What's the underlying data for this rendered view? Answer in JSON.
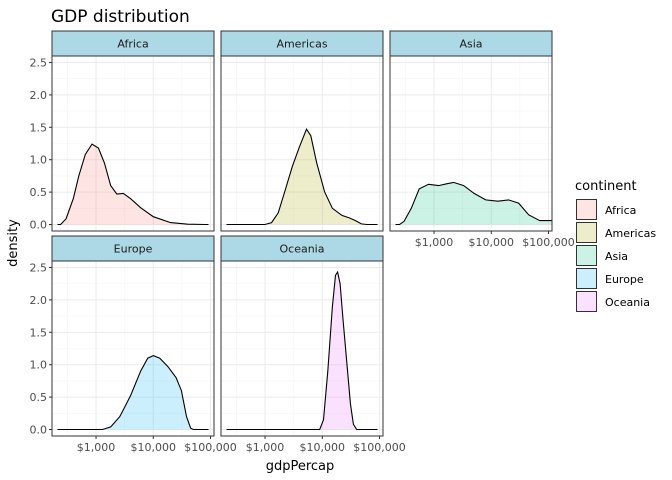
{
  "colors": {
    "strip_bg": "#add8e6",
    "grid_major": "#ebebeb",
    "grid_minor": "#f5f5f5",
    "panel_border": "#333333",
    "curve": "#000000",
    "Africa": "#f8766d",
    "Americas": "#a3a500",
    "Asia": "#00bf7d",
    "Europe": "#00b0f6",
    "Oceania": "#e76bf3"
  },
  "chart_data": {
    "type": "area",
    "subtype": "faceted density",
    "title": "GDP distribution",
    "xlabel": "gdpPercap",
    "ylabel": "density",
    "x_scale": "log10",
    "xlim": [
      170,
      115000
    ],
    "ylim": [
      -0.1,
      2.6
    ],
    "x_ticks": [
      1000,
      10000,
      100000
    ],
    "x_tick_labels": [
      "$1,000",
      "$10,000",
      "$100,000"
    ],
    "y_ticks": [
      0,
      0.5,
      1,
      1.5,
      2,
      2.5
    ],
    "y_tick_labels": [
      "0.0",
      "0.5",
      "1.0",
      "1.5",
      "2.0",
      "2.5"
    ],
    "grid": true,
    "fill_alpha": 0.2,
    "legend": {
      "title": "continent",
      "position": "right",
      "entries": [
        "Africa",
        "Americas",
        "Asia",
        "Europe",
        "Oceania"
      ]
    },
    "facets": [
      {
        "name": "Africa",
        "points": [
          [
            240,
            0
          ],
          [
            300,
            0.09
          ],
          [
            400,
            0.4
          ],
          [
            500,
            0.75
          ],
          [
            650,
            1.08
          ],
          [
            850,
            1.24
          ],
          [
            1100,
            1.18
          ],
          [
            1400,
            0.95
          ],
          [
            1800,
            0.6
          ],
          [
            2300,
            0.47
          ],
          [
            3000,
            0.48
          ],
          [
            4000,
            0.4
          ],
          [
            6000,
            0.26
          ],
          [
            10000,
            0.12
          ],
          [
            20000,
            0.03
          ],
          [
            40000,
            0.005
          ],
          [
            80000,
            0
          ]
        ]
      },
      {
        "name": "Americas",
        "points": [
          [
            1000,
            0
          ],
          [
            1300,
            0.03
          ],
          [
            1700,
            0.18
          ],
          [
            2200,
            0.5
          ],
          [
            3000,
            0.9
          ],
          [
            4000,
            1.2
          ],
          [
            5300,
            1.47
          ],
          [
            6300,
            1.37
          ],
          [
            8000,
            0.95
          ],
          [
            11000,
            0.5
          ],
          [
            15000,
            0.25
          ],
          [
            22000,
            0.14
          ],
          [
            30000,
            0.1
          ],
          [
            38000,
            0.06
          ],
          [
            48000,
            0.01
          ],
          [
            60000,
            0
          ]
        ]
      },
      {
        "name": "Asia",
        "points": [
          [
            250,
            0
          ],
          [
            300,
            0.05
          ],
          [
            400,
            0.25
          ],
          [
            550,
            0.55
          ],
          [
            800,
            0.62
          ],
          [
            1200,
            0.6
          ],
          [
            1700,
            0.63
          ],
          [
            2200,
            0.65
          ],
          [
            3300,
            0.6
          ],
          [
            5000,
            0.48
          ],
          [
            8000,
            0.38
          ],
          [
            13000,
            0.36
          ],
          [
            20000,
            0.38
          ],
          [
            30000,
            0.33
          ],
          [
            45000,
            0.15
          ],
          [
            70000,
            0.06
          ],
          [
            100000,
            0.06
          ],
          [
            113000,
            0.06
          ]
        ]
      },
      {
        "name": "Europe",
        "points": [
          [
            1300,
            0
          ],
          [
            1800,
            0.04
          ],
          [
            2600,
            0.2
          ],
          [
            4000,
            0.52
          ],
          [
            6000,
            0.9
          ],
          [
            8000,
            1.1
          ],
          [
            10000,
            1.14
          ],
          [
            13000,
            1.1
          ],
          [
            18000,
            0.97
          ],
          [
            25000,
            0.8
          ],
          [
            31000,
            0.6
          ],
          [
            38000,
            0.2
          ],
          [
            45000,
            0.02
          ],
          [
            50000,
            0
          ]
        ]
      },
      {
        "name": "Oceania",
        "points": [
          [
            9000,
            0
          ],
          [
            10500,
            0.15
          ],
          [
            12500,
            0.9
          ],
          [
            15000,
            1.9
          ],
          [
            17000,
            2.38
          ],
          [
            18500,
            2.43
          ],
          [
            20500,
            2.25
          ],
          [
            23000,
            1.7
          ],
          [
            27000,
            1.0
          ],
          [
            31000,
            0.4
          ],
          [
            35000,
            0.08
          ],
          [
            40000,
            0
          ]
        ]
      }
    ]
  }
}
